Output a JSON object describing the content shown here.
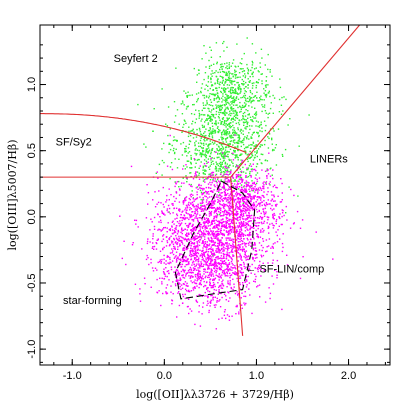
{
  "chart_data": {
    "type": "scatter",
    "xlabel": "log([OII]λλ3726 + 3729/Hβ)",
    "ylabel": "log([OIII]λ5007/Hβ)",
    "xlim": [
      -1.35,
      2.45
    ],
    "ylim": [
      -1.12,
      1.45
    ],
    "x_ticks": [
      -1.0,
      0.0,
      1.0,
      2.0
    ],
    "x_tick_labels": [
      "-1.0",
      "0.0",
      "1.0",
      "2.0"
    ],
    "y_ticks": [
      -1.0,
      -0.5,
      0.0,
      0.5,
      1.0
    ],
    "y_tick_labels": [
      "-1.0",
      "-0.5",
      "0.0",
      "0.5",
      "1.0"
    ],
    "grid": false,
    "series": [
      {
        "color": "#33ee33",
        "points": [
          {
            "x": 0.68,
            "y": 0.6,
            "sx": 0.28,
            "sy": 0.22,
            "r": 0.5
          },
          {
            "x": 0.55,
            "y": 0.5,
            "sx": 0.26,
            "sy": 0.14,
            "r": 0.3
          },
          {
            "x": 0.72,
            "y": 0.95,
            "sx": 0.2,
            "sy": 0.14,
            "r": 0.4
          }
        ]
      },
      {
        "color": "#ff00ff",
        "points": [
          {
            "x": 0.65,
            "y": 0.05,
            "sx": 0.3,
            "sy": 0.16,
            "r": 0.6
          },
          {
            "x": 0.45,
            "y": -0.15,
            "sx": 0.32,
            "sy": 0.18,
            "r": 0.75
          },
          {
            "x": 0.5,
            "y": -0.4,
            "sx": 0.28,
            "sy": 0.15,
            "r": 0.6
          },
          {
            "x": 0.85,
            "y": 0.15,
            "sx": 0.2,
            "sy": 0.12,
            "r": 0.3
          }
        ]
      }
    ],
    "regions": [
      {
        "label": "Seyfert 2",
        "x": -0.55,
        "y": 1.17
      },
      {
        "label": "SF/Sy2",
        "x": -1.18,
        "y": 0.54
      },
      {
        "label": "LINERs",
        "x": 1.58,
        "y": 0.41
      },
      {
        "label": "← SF-LIN/comp",
        "x": 0.88,
        "y": -0.42
      },
      {
        "label": "star-forming",
        "x": -1.1,
        "y": -0.66
      }
    ]
  },
  "colors": {
    "divider_line": "#e03030",
    "dashed_contour": "#000000",
    "sf_points": "#ff00ff",
    "agn_points": "#33ee33"
  }
}
